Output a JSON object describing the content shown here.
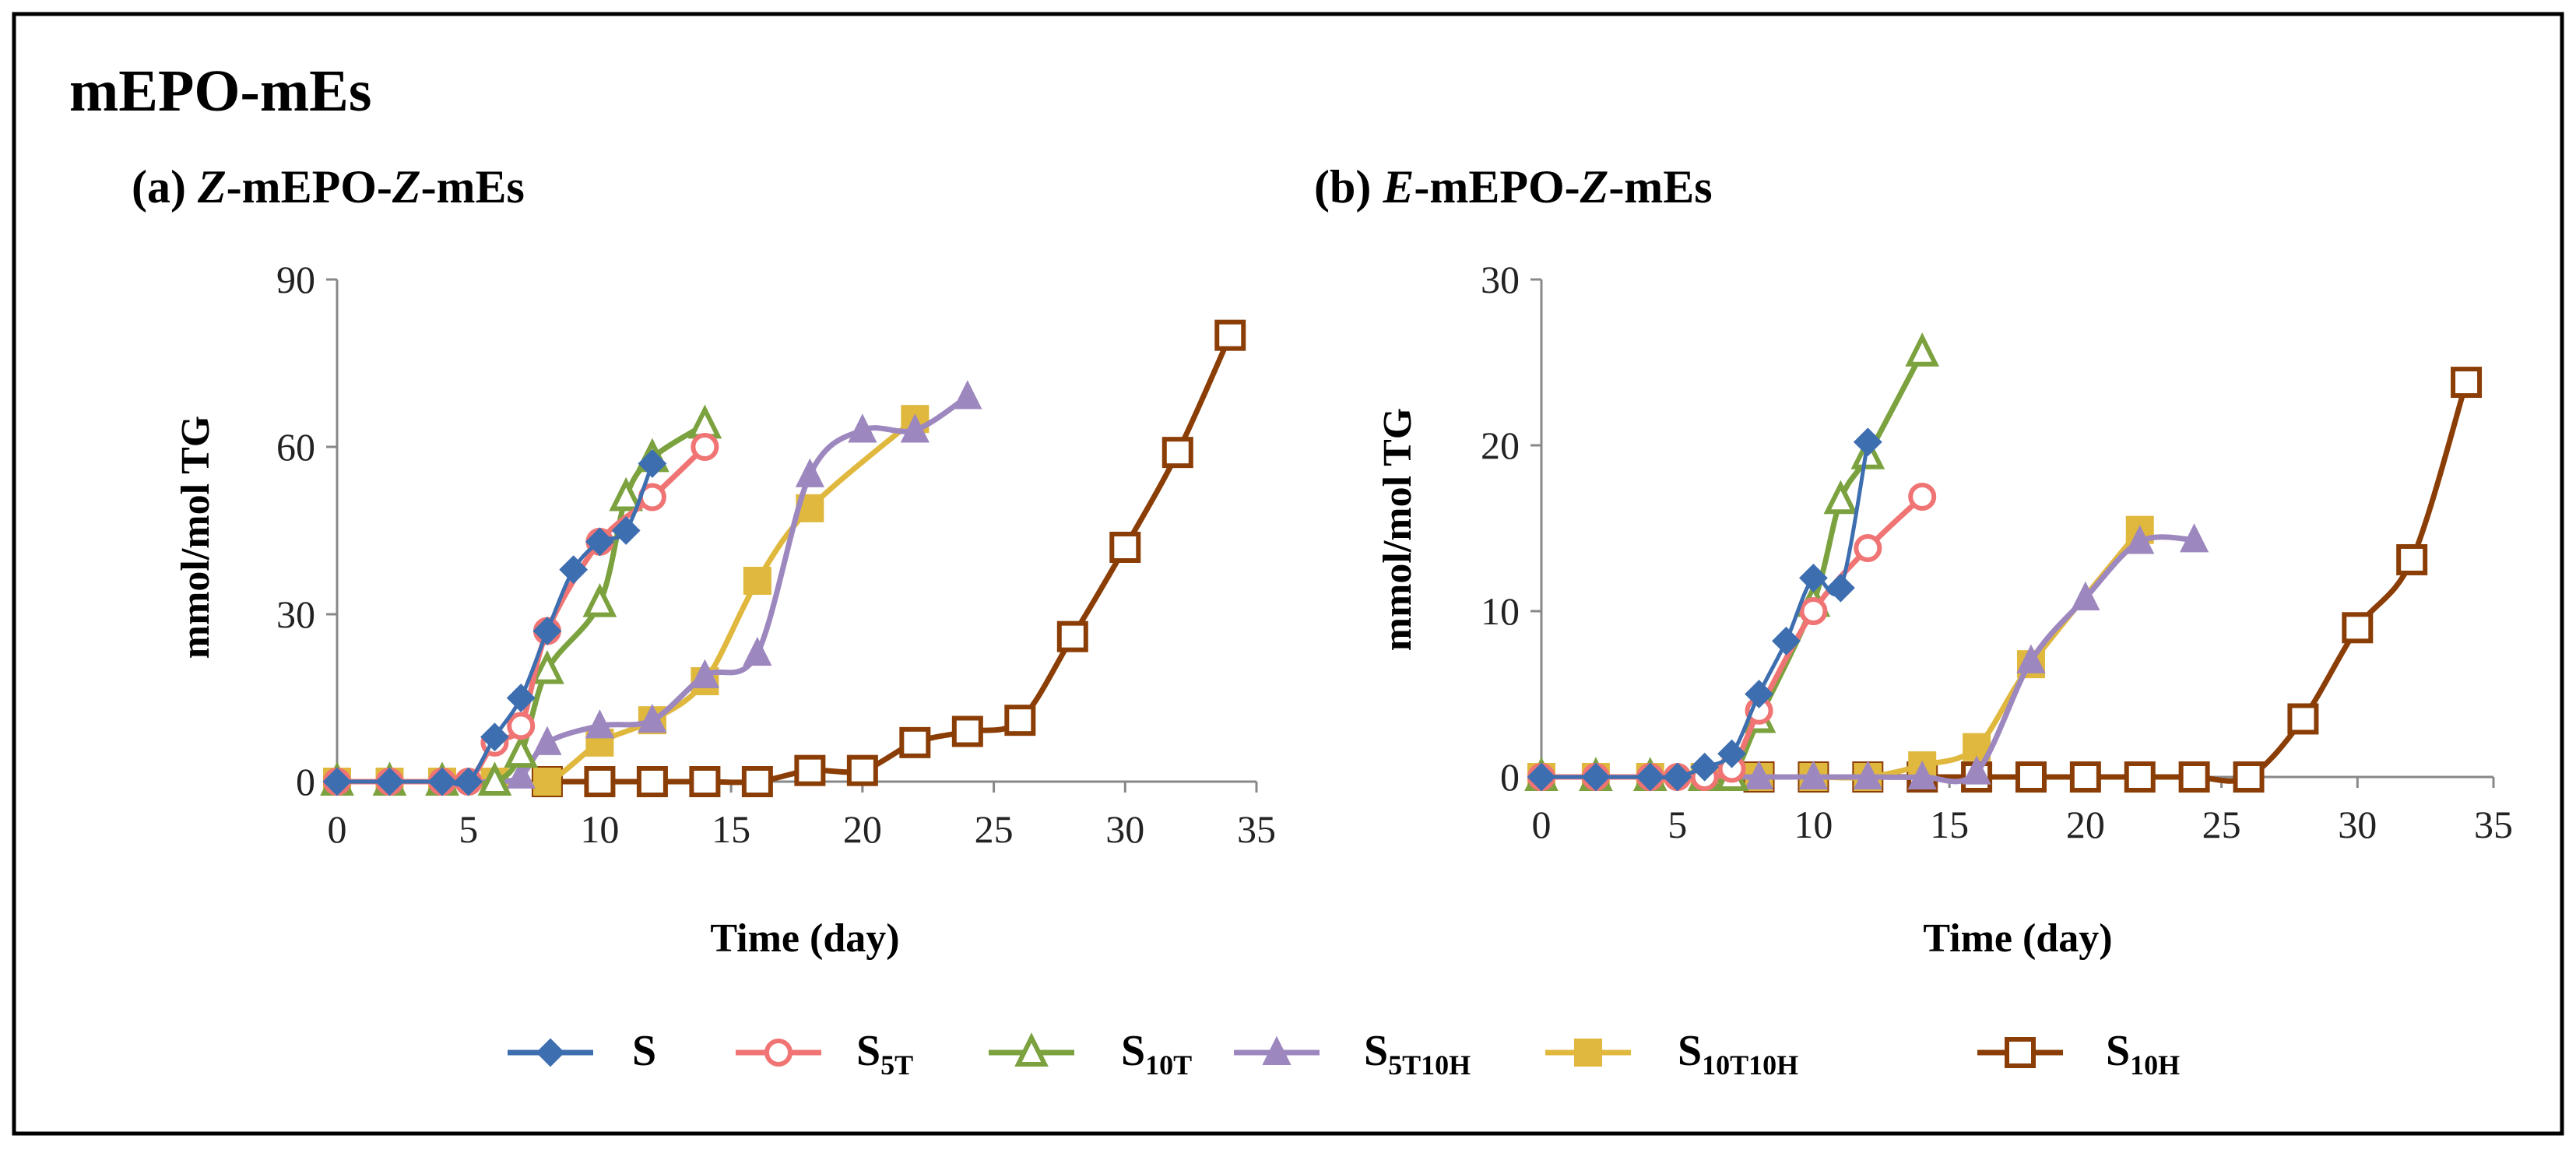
{
  "figure_title": "mEPO-mEs",
  "legend": [
    {
      "base": "S",
      "sub": ""
    },
    {
      "base": "S",
      "sub": "5T"
    },
    {
      "base": "S",
      "sub": "10T"
    },
    {
      "base": "S",
      "sub": "5T10H"
    },
    {
      "base": "S",
      "sub": "10T10H"
    },
    {
      "base": "S",
      "sub": "10H"
    }
  ],
  "series_style": [
    {
      "color": "#3d6eb0",
      "marker": "diamond",
      "filled": true
    },
    {
      "color": "#f07474",
      "marker": "circle",
      "filled": false
    },
    {
      "color": "#7ba23f",
      "marker": "triangle",
      "filled": false
    },
    {
      "color": "#9d87bf",
      "marker": "triangle",
      "filled": true
    },
    {
      "color": "#e0b83e",
      "marker": "square",
      "filled": true
    },
    {
      "color": "#8b3d06",
      "marker": "square",
      "filled": false
    }
  ],
  "chart_data": [
    {
      "type": "line",
      "panel_label": "(a) ",
      "title_parts": [
        "Z",
        "-mEPO-",
        "Z",
        "-mEs"
      ],
      "xlabel": "Time (day)",
      "ylabel": "mmol/mol TG",
      "xlim": [
        0,
        35
      ],
      "ylim": [
        0,
        90
      ],
      "xticks": [
        0,
        5,
        10,
        15,
        20,
        25,
        30,
        35
      ],
      "yticks": [
        0,
        30,
        60,
        90
      ],
      "series": [
        {
          "name": "S",
          "x": [
            0,
            2,
            4,
            5,
            6,
            7,
            8,
            9,
            10,
            11,
            12
          ],
          "y": [
            0,
            0,
            0,
            0,
            8,
            15,
            27,
            38,
            43,
            45,
            57
          ]
        },
        {
          "name": "S5T",
          "x": [
            0,
            2,
            4,
            5,
            6,
            7,
            8,
            10,
            12,
            14
          ],
          "y": [
            0,
            0,
            0,
            0,
            7,
            10,
            27,
            43,
            51,
            60
          ]
        },
        {
          "name": "S10T",
          "x": [
            0,
            2,
            4,
            6,
            7,
            8,
            10,
            11,
            12,
            14
          ],
          "y": [
            0,
            0,
            0,
            0,
            5,
            20,
            32,
            51,
            58,
            64
          ]
        },
        {
          "name": "S5T10H",
          "x": [
            0,
            2,
            4,
            6,
            7,
            8,
            10,
            12,
            14,
            16,
            18,
            20,
            22,
            24
          ],
          "y": [
            0,
            0,
            0,
            0,
            1,
            7,
            10,
            11,
            19,
            23,
            55,
            63,
            63,
            69
          ]
        },
        {
          "name": "S10T10H",
          "x": [
            0,
            2,
            4,
            6,
            8,
            10,
            12,
            14,
            16,
            18,
            22
          ],
          "y": [
            0,
            0,
            0,
            0,
            0,
            7,
            11,
            18,
            36,
            49,
            65
          ]
        },
        {
          "name": "S10H",
          "x": [
            8,
            10,
            12,
            14,
            16,
            18,
            20,
            22,
            24,
            26,
            28,
            30,
            32,
            34
          ],
          "y": [
            0,
            0,
            0,
            0,
            0,
            2,
            2,
            7,
            9,
            11,
            26,
            42,
            59,
            80
          ]
        }
      ]
    },
    {
      "type": "line",
      "panel_label": "(b) ",
      "title_parts": [
        "E",
        "-mEPO-",
        "Z",
        "-mEs"
      ],
      "xlabel": "Time (day)",
      "ylabel": "mmol/mol TG",
      "xlim": [
        0,
        35
      ],
      "ylim": [
        0,
        30
      ],
      "xticks": [
        0,
        5,
        10,
        15,
        20,
        25,
        30,
        35
      ],
      "yticks": [
        0,
        10,
        20,
        30
      ],
      "series": [
        {
          "name": "S",
          "x": [
            0,
            2,
            4,
            5,
            6,
            7,
            8,
            9,
            10,
            11,
            12
          ],
          "y": [
            0,
            0,
            0,
            0,
            0.6,
            1.4,
            5,
            8.2,
            12,
            11.4,
            20.2
          ]
        },
        {
          "name": "S5T",
          "x": [
            0,
            2,
            4,
            5,
            6,
            7,
            8,
            10,
            12,
            14
          ],
          "y": [
            0,
            0,
            0,
            0,
            0,
            0.5,
            4,
            10,
            13.8,
            16.9
          ]
        },
        {
          "name": "S10T",
          "x": [
            0,
            2,
            4,
            6,
            7,
            8,
            10,
            11,
            12,
            14
          ],
          "y": [
            0,
            0,
            0,
            0,
            0,
            3.5,
            10.5,
            16.7,
            19.4,
            25.6
          ]
        },
        {
          "name": "S5T10H",
          "x": [
            0,
            2,
            4,
            6,
            8,
            10,
            12,
            14,
            16,
            18,
            20,
            22,
            24
          ],
          "y": [
            0,
            0,
            0,
            0,
            0,
            0,
            0,
            0,
            0.3,
            7,
            10.8,
            14.2,
            14.3
          ]
        },
        {
          "name": "S10T10H",
          "x": [
            0,
            2,
            4,
            6,
            8,
            10,
            12,
            14,
            16,
            18,
            22
          ],
          "y": [
            0,
            0,
            0,
            0,
            0,
            0,
            0,
            0.7,
            1.8,
            6.8,
            14.9
          ]
        },
        {
          "name": "S10H",
          "x": [
            8,
            10,
            12,
            14,
            16,
            18,
            20,
            22,
            24,
            26,
            28,
            30,
            32,
            34
          ],
          "y": [
            0,
            0,
            0,
            0,
            0,
            0,
            0,
            0,
            0,
            0,
            3.5,
            9,
            13.1,
            23.8
          ]
        }
      ]
    }
  ]
}
